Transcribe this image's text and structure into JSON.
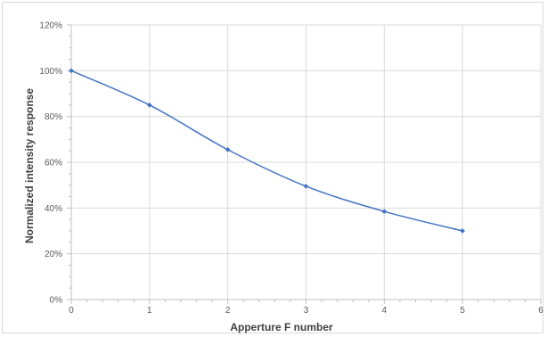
{
  "chart_data": {
    "type": "line",
    "title": "",
    "xlabel": "Apperture F number",
    "ylabel": "Normalized intensity response",
    "xlim": [
      0,
      6
    ],
    "ylim": [
      0,
      1.2
    ],
    "x_ticks": [
      0,
      1,
      2,
      3,
      4,
      5,
      6
    ],
    "x_tick_labels": [
      "0",
      "1",
      "2",
      "3",
      "4",
      "5",
      "6"
    ],
    "y_ticks": [
      0,
      0.2,
      0.4,
      0.6,
      0.8,
      1.0,
      1.2
    ],
    "y_tick_labels": [
      "0%",
      "20%",
      "40%",
      "60%",
      "80%",
      "100%",
      "120%"
    ],
    "grid": true,
    "legend": "none",
    "series": [
      {
        "x": [
          0,
          1,
          2,
          3,
          4,
          5
        ],
        "y": [
          1.0,
          0.85,
          0.655,
          0.495,
          0.385,
          0.3
        ],
        "color": "#4472c4",
        "marker": "diamond"
      }
    ]
  }
}
